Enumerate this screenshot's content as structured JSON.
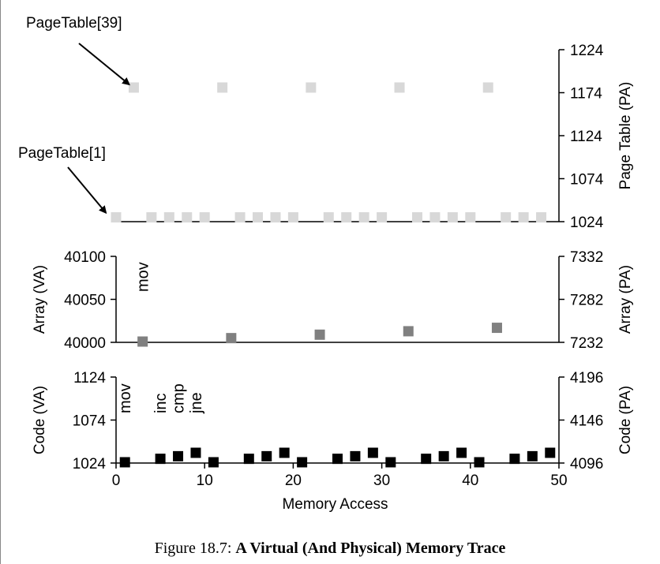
{
  "caption": {
    "prefix": "Figure 18.7:",
    "title": "A Virtual (And Physical) Memory Trace"
  },
  "chart_data": [
    {
      "type": "scatter",
      "id": "page-table",
      "y2label": "Page Table (PA)",
      "xlim": [
        0,
        50
      ],
      "y2lim": [
        1024,
        1224
      ],
      "y2ticks": [
        1024,
        1074,
        1124,
        1174,
        1224
      ],
      "color": "#d8d8d8",
      "series": [
        {
          "x": [
            2,
            12,
            22,
            32,
            42
          ],
          "y": [
            1180,
            1180,
            1180,
            1180,
            1180
          ]
        },
        {
          "x": [
            0,
            4,
            6,
            8,
            10,
            14,
            16,
            18,
            20,
            24,
            26,
            28,
            30,
            34,
            36,
            38,
            40,
            44,
            46,
            48
          ],
          "y": [
            1029,
            1029,
            1029,
            1029,
            1029,
            1029,
            1029,
            1029,
            1029,
            1029,
            1029,
            1029,
            1029,
            1029,
            1029,
            1029,
            1029,
            1029,
            1029,
            1029
          ]
        }
      ],
      "annotations": [
        {
          "text": "PageTable[39]",
          "target_x": 2,
          "target_y": 1180
        },
        {
          "text": "PageTable[1]",
          "target_x": 0,
          "target_y": 1029
        }
      ]
    },
    {
      "type": "scatter",
      "id": "array",
      "ylabel": "Array (VA)",
      "y2label": "Array (PA)",
      "xlim": [
        0,
        50
      ],
      "ylim": [
        40000,
        40100
      ],
      "y2lim": [
        7232,
        7332
      ],
      "yticks": [
        40000,
        40050,
        40100
      ],
      "y2ticks": [
        7232,
        7282,
        7332
      ],
      "color": "#808080",
      "x": [
        3,
        13,
        23,
        33,
        43
      ],
      "y": [
        40000,
        40004,
        40008,
        40012,
        40016
      ],
      "instruction_label": {
        "text": "mov",
        "x": 3
      }
    },
    {
      "type": "scatter",
      "id": "code",
      "ylabel": "Code (VA)",
      "y2label": "Code (PA)",
      "xlabel": "Memory Access",
      "xlim": [
        0,
        50
      ],
      "xticks": [
        0,
        10,
        20,
        30,
        40,
        50
      ],
      "ylim": [
        1024,
        1124
      ],
      "y2lim": [
        4096,
        4196
      ],
      "yticks": [
        1024,
        1074,
        1124
      ],
      "y2ticks": [
        4096,
        4146,
        4196
      ],
      "color": "#000000",
      "x": [
        1,
        5,
        7,
        9,
        11,
        15,
        17,
        19,
        21,
        25,
        27,
        29,
        31,
        35,
        37,
        39,
        41,
        45,
        47,
        49
      ],
      "y": [
        1024,
        1028,
        1031,
        1035,
        1024,
        1028,
        1031,
        1035,
        1024,
        1028,
        1031,
        1035,
        1024,
        1028,
        1031,
        1035,
        1024,
        1028,
        1031,
        1035
      ],
      "instruction_labels": [
        {
          "text": "mov",
          "x": 1
        },
        {
          "text": "inc",
          "x": 5
        },
        {
          "text": "cmp",
          "x": 7
        },
        {
          "text": "jne",
          "x": 9
        }
      ]
    }
  ]
}
